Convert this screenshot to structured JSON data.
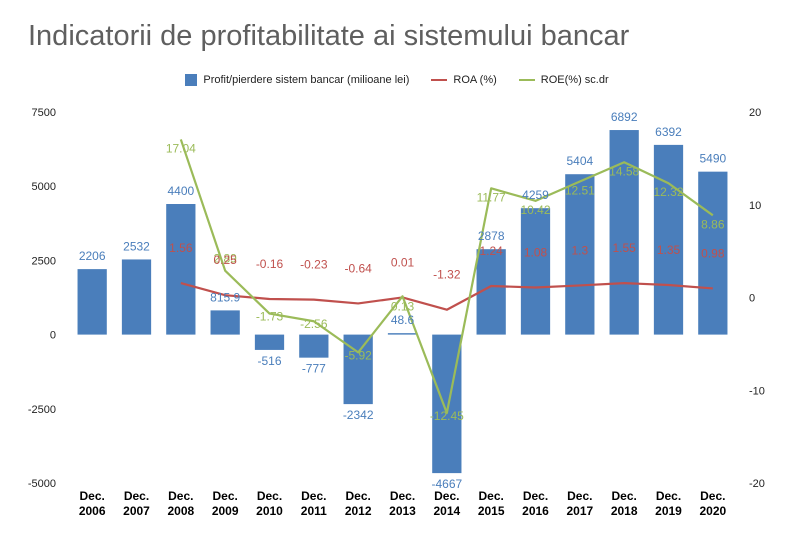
{
  "chart_data": {
    "type": "bar",
    "title": "Indicatorii de profitabilitate ai sistemului bancar",
    "categories": [
      "Dec. 2006",
      "Dec. 2007",
      "Dec. 2008",
      "Dec. 2009",
      "Dec. 2010",
      "Dec. 2011",
      "Dec. 2012",
      "Dec. 2013",
      "Dec. 2014",
      "Dec. 2015",
      "Dec. 2016",
      "Dec. 2017",
      "Dec. 2018",
      "Dec. 2019",
      "Dec. 2020"
    ],
    "category_labels": [
      [
        "Dec.",
        "2006"
      ],
      [
        "Dec.",
        "2007"
      ],
      [
        "Dec.",
        "2008"
      ],
      [
        "Dec.",
        "2009"
      ],
      [
        "Dec.",
        "2010"
      ],
      [
        "Dec.",
        "2011"
      ],
      [
        "Dec.",
        "2012"
      ],
      [
        "Dec.",
        "2013"
      ],
      [
        "Dec.",
        "2014"
      ],
      [
        "Dec.",
        "2015"
      ],
      [
        "Dec.",
        "2016"
      ],
      [
        "Dec.",
        "2017"
      ],
      [
        "Dec.",
        "2018"
      ],
      [
        "Dec.",
        "2019"
      ],
      [
        "Dec.",
        "2020"
      ]
    ],
    "series": [
      {
        "name": "Profit/pierdere sistem bancar (milioane lei)",
        "type": "bar",
        "axis": "left",
        "color": "#4a7ebb",
        "values": [
          2206,
          2532,
          4400,
          815.9,
          -516,
          -777,
          -2342,
          48.6,
          -4667,
          2878,
          4259,
          5404,
          6892,
          6392,
          5490
        ],
        "labels": [
          "2206",
          "2532",
          "4400",
          "815.9",
          "-516",
          "-777",
          "-2342",
          "48.6",
          "-4667",
          "2878",
          "4259",
          "5404",
          "6892",
          "6392",
          "5490"
        ]
      },
      {
        "name": "ROA (%)",
        "type": "line",
        "axis": "right",
        "color": "#c0504d",
        "values": [
          null,
          null,
          1.56,
          0.25,
          -0.16,
          -0.23,
          -0.64,
          0.01,
          -1.32,
          1.24,
          1.08,
          1.3,
          1.55,
          1.35,
          0.98
        ],
        "labels": [
          "",
          "",
          "1.56",
          "0.25",
          "-0.16",
          "-0.23",
          "-0.64",
          "0.01",
          "-1.32",
          "1.24",
          "1.08",
          "1.3",
          "1.55",
          "1.35",
          "0.98"
        ]
      },
      {
        "name": "ROE(%) sc.dr",
        "type": "line",
        "axis": "right",
        "color": "#9bbb59",
        "values": [
          null,
          null,
          17.04,
          2.89,
          -1.73,
          -2.56,
          -5.92,
          0.13,
          -12.45,
          11.77,
          10.42,
          12.51,
          14.58,
          12.32,
          8.86
        ],
        "labels": [
          "",
          "",
          "17.04",
          "2.89",
          "-1.73",
          "-2.56",
          "-5.92",
          "0.13",
          "-12.45",
          "11.77",
          "10.42",
          "12.51",
          "14.58",
          "12.32",
          "8.86"
        ]
      }
    ],
    "y_left": {
      "min": -5000,
      "max": 7500,
      "ticks": [
        "7500",
        "5000",
        "2500",
        "0",
        "-2500",
        "-5000"
      ],
      "tick_values": [
        7500,
        5000,
        2500,
        0,
        -2500,
        -5000
      ]
    },
    "y_right": {
      "min": -20,
      "max": 20,
      "ticks": [
        "20",
        "10",
        "0",
        "-10",
        "-20"
      ],
      "tick_values": [
        20,
        10,
        0,
        -10,
        -20
      ]
    },
    "legend_position": "top",
    "grid": false
  }
}
